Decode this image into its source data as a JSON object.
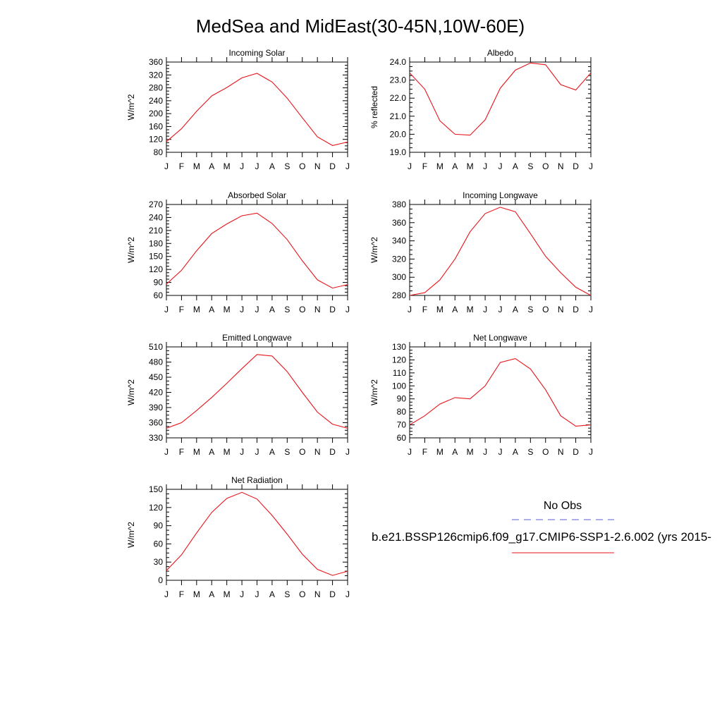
{
  "title": "MedSea and MidEast(30-45N,10W-60E)",
  "colors": {
    "model_line": "#e8141b",
    "obs_line": "#5b5bd6",
    "axis": "#000000"
  },
  "months": [
    "J",
    "F",
    "M",
    "A",
    "M",
    "J",
    "J",
    "A",
    "S",
    "O",
    "N",
    "D",
    "J"
  ],
  "chart_data": [
    {
      "type": "line",
      "title": "Incoming Solar",
      "ylabel": "W/m^2",
      "ylim": [
        80,
        360
      ],
      "yticks": [
        80,
        120,
        160,
        200,
        240,
        280,
        320,
        360
      ],
      "ytick_labels": [
        "80",
        "120",
        "160",
        "200",
        "240",
        "280",
        "320",
        "360"
      ],
      "values": [
        113,
        153,
        207,
        255,
        281,
        311,
        325,
        298,
        248,
        187,
        128,
        101,
        112
      ]
    },
    {
      "type": "line",
      "title": "Albedo",
      "ylabel": "% reflected",
      "ylim": [
        19.0,
        24.0
      ],
      "yticks": [
        19.0,
        20.0,
        21.0,
        22.0,
        23.0,
        24.0
      ],
      "ytick_labels": [
        "19.0",
        "20.0",
        "21.0",
        "22.0",
        "23.0",
        "24.0"
      ],
      "values": [
        23.4,
        22.5,
        20.75,
        20.0,
        19.95,
        20.8,
        22.55,
        23.55,
        23.95,
        23.85,
        22.75,
        22.45,
        23.4
      ]
    },
    {
      "type": "line",
      "title": "Absorbed Solar",
      "ylabel": "W/m^2",
      "ylim": [
        60,
        270
      ],
      "yticks": [
        60,
        90,
        120,
        150,
        180,
        210,
        240,
        270
      ],
      "ytick_labels": [
        "60",
        "90",
        "120",
        "150",
        "180",
        "210",
        "240",
        "270"
      ],
      "values": [
        86,
        118,
        163,
        203,
        225,
        244,
        250,
        226,
        189,
        140,
        96,
        77,
        85
      ]
    },
    {
      "type": "line",
      "title": "Incoming Longwave",
      "ylabel": "W/m^2",
      "ylim": [
        280,
        380
      ],
      "yticks": [
        280,
        300,
        320,
        340,
        360,
        380
      ],
      "ytick_labels": [
        "280",
        "300",
        "320",
        "340",
        "360",
        "380"
      ],
      "values": [
        280,
        283,
        297,
        320,
        350,
        370,
        377,
        372,
        348,
        323,
        305,
        289,
        280
      ]
    },
    {
      "type": "line",
      "title": "Emitted Longwave",
      "ylabel": "W/m^2",
      "ylim": [
        330,
        510
      ],
      "yticks": [
        330,
        360,
        390,
        420,
        450,
        480,
        510
      ],
      "ytick_labels": [
        "330",
        "360",
        "390",
        "420",
        "450",
        "480",
        "510"
      ],
      "values": [
        349,
        360,
        384,
        410,
        438,
        467,
        495,
        492,
        461,
        420,
        381,
        357,
        349
      ]
    },
    {
      "type": "line",
      "title": "Net Longwave",
      "ylabel": "W/m^2",
      "ylim": [
        60,
        130
      ],
      "yticks": [
        60,
        70,
        80,
        90,
        100,
        110,
        120,
        130
      ],
      "ytick_labels": [
        "60",
        "70",
        "80",
        "90",
        "100",
        "110",
        "120",
        "130"
      ],
      "values": [
        70,
        77,
        86,
        91,
        90,
        100,
        118,
        121,
        113,
        97,
        77,
        69,
        70
      ]
    },
    {
      "type": "line",
      "title": "Net Radiation",
      "ylabel": "W/m^2",
      "ylim": [
        0,
        150
      ],
      "yticks": [
        0,
        30,
        60,
        90,
        120,
        150
      ],
      "ytick_labels": [
        "0",
        "30",
        "60",
        "90",
        "120",
        "150"
      ],
      "values": [
        16,
        42,
        78,
        112,
        135,
        145,
        134,
        107,
        76,
        43,
        18,
        8,
        15
      ]
    }
  ],
  "legend": {
    "obs_label": "No Obs",
    "model_label": "b.e21.BSSP126cmip6.f09_g17.CMIP6-SSP1-2.6.002 (yrs 2015-"
  }
}
